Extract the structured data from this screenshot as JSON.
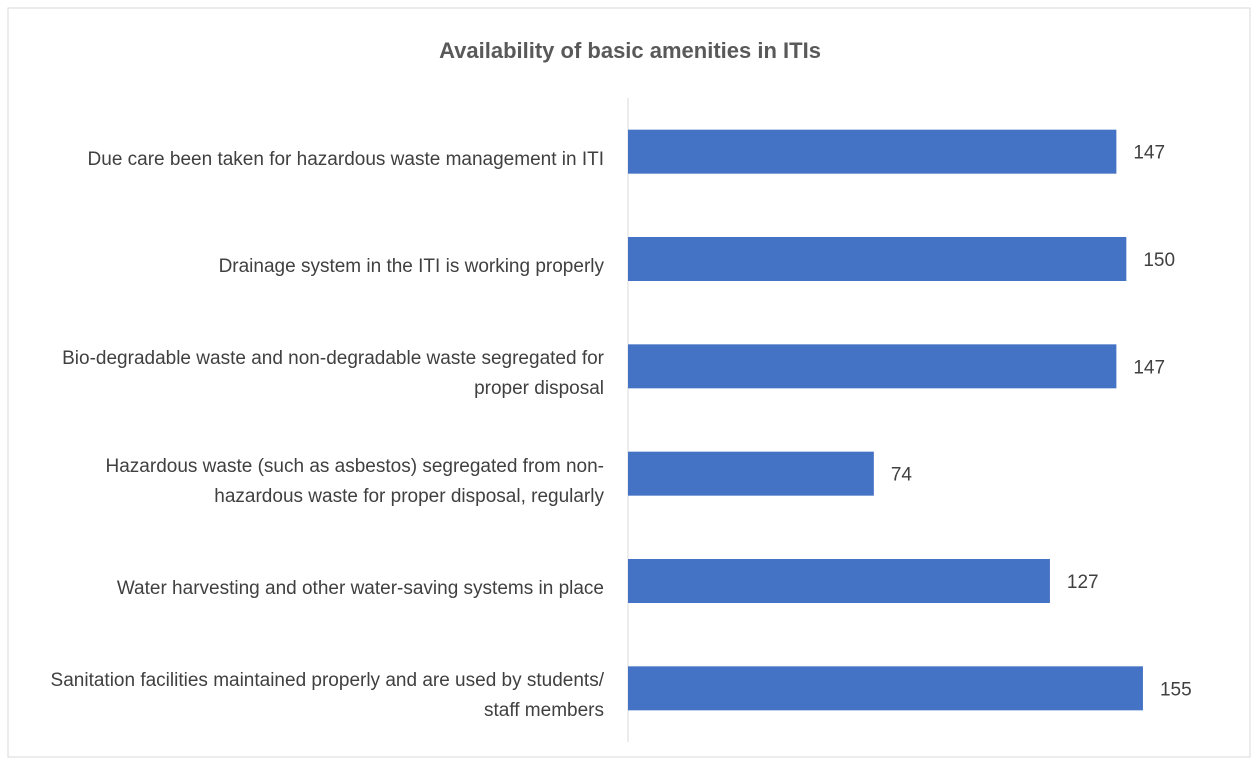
{
  "chart_data": {
    "type": "bar",
    "orientation": "horizontal",
    "title": "Availability of basic amenities in ITIs",
    "categories": [
      "Due care been taken for hazardous waste management in ITI",
      "Drainage system in the ITI is working properly",
      "Bio-degradable waste and non-degradable waste segregated for proper disposal",
      "Hazardous waste (such as asbestos) segregated from non-hazardous waste for proper disposal, regularly",
      "Water harvesting and other water-saving systems in place",
      "Sanitation facilities maintained properly and are used by students/ staff members"
    ],
    "values": [
      147,
      150,
      147,
      74,
      127,
      155
    ],
    "color": "#4472c4",
    "xlim": [
      0,
      180
    ]
  }
}
